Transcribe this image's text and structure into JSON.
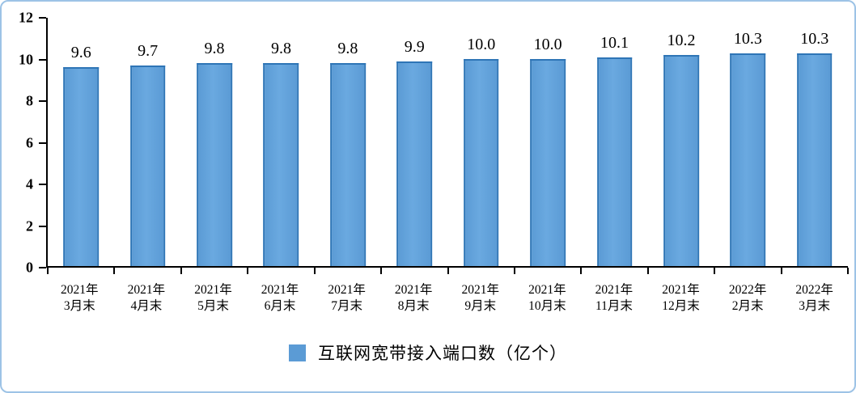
{
  "chart_data": {
    "type": "bar",
    "title": "",
    "xlabel": "",
    "ylabel": "",
    "legend": "互联网宽带接入端口数（亿个）",
    "legend_position": "bottom-center",
    "grid": false,
    "ylim": [
      0,
      12
    ],
    "y_ticks": [
      0,
      2,
      4,
      6,
      8,
      10,
      12
    ],
    "categories": [
      {
        "top": "2021年",
        "bottom": "3月末"
      },
      {
        "top": "2021年",
        "bottom": "4月末"
      },
      {
        "top": "2021年",
        "bottom": "5月末"
      },
      {
        "top": "2021年",
        "bottom": "6月末"
      },
      {
        "top": "2021年",
        "bottom": "7月末"
      },
      {
        "top": "2021年",
        "bottom": "8月末"
      },
      {
        "top": "2021年",
        "bottom": "9月末"
      },
      {
        "top": "2021年",
        "bottom": "10月末"
      },
      {
        "top": "2021年",
        "bottom": "11月末"
      },
      {
        "top": "2021年",
        "bottom": "12月末"
      },
      {
        "top": "2022年",
        "bottom": "2月末"
      },
      {
        "top": "2022年",
        "bottom": "3月末"
      }
    ],
    "values": [
      9.6,
      9.7,
      9.8,
      9.8,
      9.8,
      9.9,
      10.0,
      10.0,
      10.1,
      10.2,
      10.3,
      10.3
    ],
    "value_labels": [
      "9.6",
      "9.7",
      "9.8",
      "9.8",
      "9.8",
      "9.9",
      "10.0",
      "10.0",
      "10.1",
      "10.2",
      "10.3",
      "10.3"
    ],
    "colors": {
      "bar_fill": "#5B9BD5",
      "bar_fill_light": "#6AA9E0",
      "bar_border": "#2E75B6",
      "axis": "#000000",
      "frame_border": "#9DC3E6",
      "text": "#000000",
      "background": "#FFFFFF"
    }
  }
}
